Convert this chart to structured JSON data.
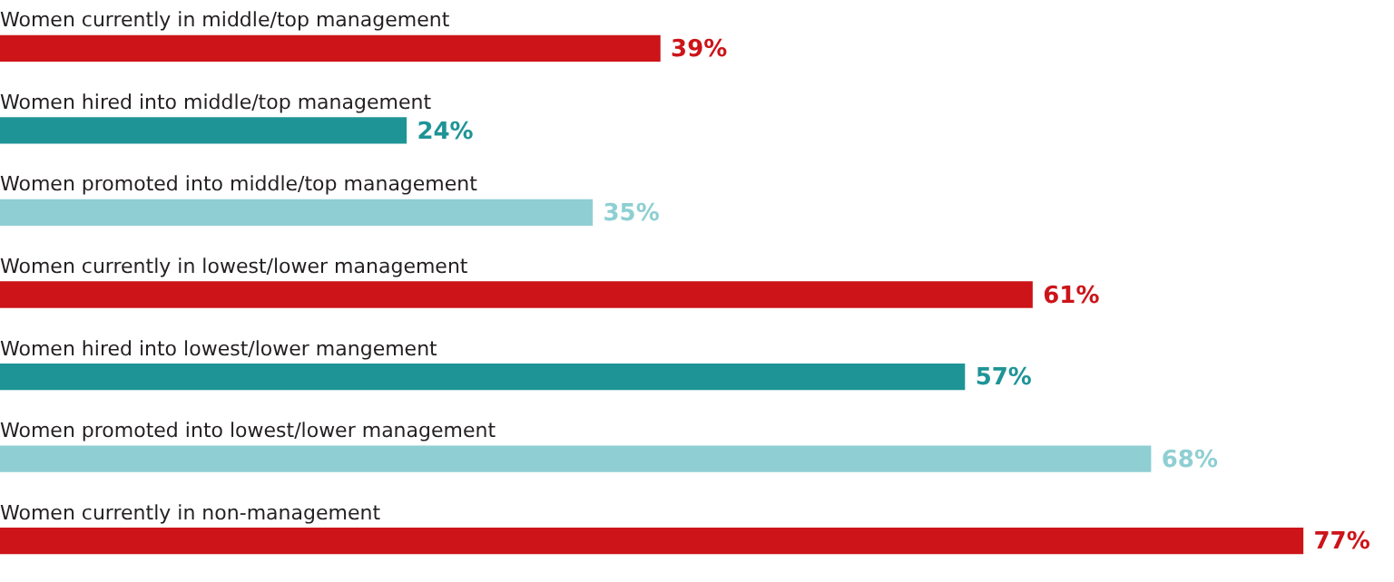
{
  "chart_data": {
    "type": "bar",
    "orientation": "horizontal",
    "categories": [
      "Women currently in middle/top management",
      "Women hired into middle/top management",
      "Women promoted into middle/top management",
      "Women currently in lowest/lower management",
      "Women hired into lowest/lower mangement",
      "Women promoted into lowest/lower management",
      "Women currently in non-management"
    ],
    "values": [
      39,
      24,
      35,
      61,
      57,
      68,
      77
    ],
    "colors": [
      "#cc1419",
      "#1f9496",
      "#8fcfd3",
      "#cc1419",
      "#1f9496",
      "#8fcfd3",
      "#cc1419"
    ],
    "value_labels": [
      "39%",
      "24%",
      "35%",
      "61%",
      "57%",
      "68%",
      "77%"
    ]
  }
}
